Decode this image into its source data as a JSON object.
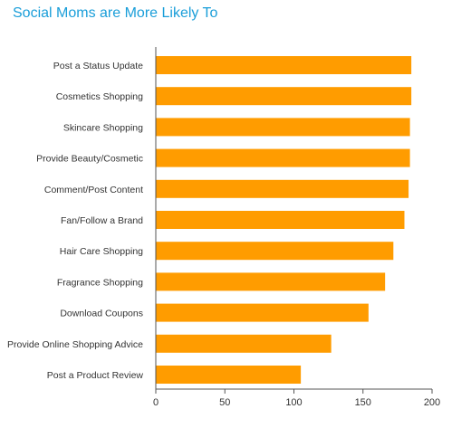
{
  "chart_data": {
    "type": "bar",
    "orientation": "horizontal",
    "title": "Social Moms are More Likely To",
    "xlabel": "",
    "ylabel": "",
    "categories": [
      "Post a Status Update",
      "Cosmetics Shopping",
      "Skincare Shopping",
      "Provide Beauty/Cosmetic",
      "Comment/Post Content",
      "Fan/Follow a Brand",
      "Hair Care Shopping",
      "Fragrance Shopping",
      "Download Coupons",
      "Provide Online Shopping Advice",
      "Post a Product Review"
    ],
    "values": [
      185,
      185,
      184,
      184,
      183,
      180,
      172,
      166,
      154,
      127,
      105
    ],
    "xlim": [
      0,
      200
    ],
    "xticks": [
      "0",
      "50",
      "100",
      "150",
      "200"
    ],
    "grid": false,
    "bar_color": "#ff9c00",
    "axis_color": "#555555",
    "title_color": "#1a9ed9"
  }
}
